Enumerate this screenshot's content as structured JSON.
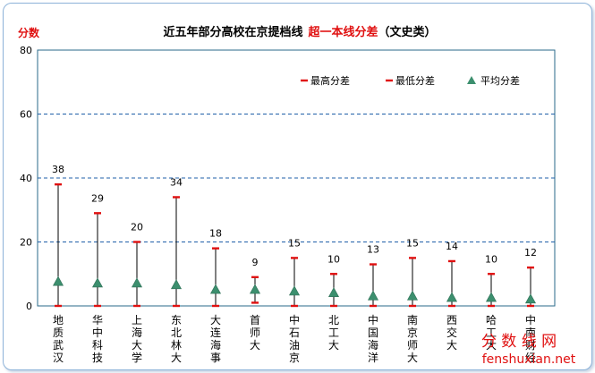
{
  "chart_data": {
    "type": "scatter",
    "title": "近五年部分高校在京提档线",
    "title_highlight": "超一本线分差",
    "title_suffix": "（文史类）",
    "ylabel": "分数",
    "ylim": [
      0,
      80
    ],
    "yticks": [
      "0",
      "20",
      "40",
      "60",
      "80"
    ],
    "grid": true,
    "legend_position": "top-right",
    "legend": [
      "最高分差",
      "最低分差",
      "平均分差"
    ],
    "colors": {
      "high": "#e01010",
      "low": "#e01010",
      "avg": "#3c8f6e",
      "grid": "#1f5fa8",
      "stem": "#000000"
    },
    "categories": [
      [
        "地",
        "质",
        "武",
        "汉"
      ],
      [
        "华",
        "中",
        "科",
        "技"
      ],
      [
        "上",
        "海",
        "大",
        "学"
      ],
      [
        "东",
        "北",
        "林",
        "大"
      ],
      [
        "大",
        "连",
        "海",
        "事"
      ],
      [
        "首",
        "师",
        "大"
      ],
      [
        "中",
        "石",
        "油",
        "京"
      ],
      [
        "北",
        "工",
        "大"
      ],
      [
        "中",
        "国",
        "海",
        "洋"
      ],
      [
        "南",
        "京",
        "师",
        "大"
      ],
      [
        "西",
        "交",
        "大"
      ],
      [
        "哈",
        "工",
        "大"
      ],
      [
        "中",
        "南",
        "财",
        "经"
      ]
    ],
    "high_labels": [
      "38",
      "29",
      "20",
      "34",
      "18",
      "9",
      "15",
      "10",
      "13",
      "15",
      "14",
      "10",
      "12"
    ],
    "high": [
      38,
      29,
      20,
      34,
      18,
      9,
      15,
      10,
      13,
      15,
      14,
      10,
      12
    ],
    "low": [
      0,
      0,
      0,
      0,
      0,
      1,
      0,
      0,
      0,
      0,
      0,
      0,
      0
    ],
    "avg": [
      7.5,
      7,
      7,
      6.5,
      5,
      5,
      4.5,
      4,
      3,
      3,
      2.5,
      2.5,
      2
    ]
  },
  "watermark": {
    "line1": "分 数 线 网",
    "line2": "fenshuxian.net"
  }
}
